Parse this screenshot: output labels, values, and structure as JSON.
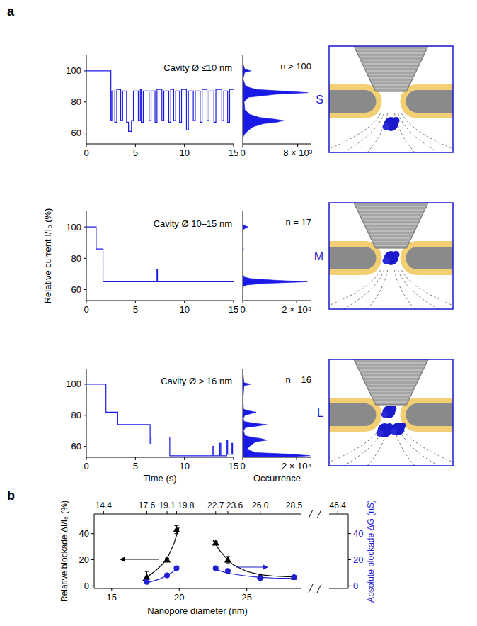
{
  "panel_labels": [
    "a",
    "b"
  ],
  "diagram": {
    "labels": [
      "S",
      "M",
      "L"
    ]
  },
  "chart_data": [
    {
      "type": "line",
      "line_style": "step",
      "annotation": "Cavity Ø ≤10 nm",
      "color": "#1a1ae6",
      "x": [
        0,
        2.5,
        2.6,
        2.9,
        3.1,
        3.5,
        3.7,
        4.1,
        4.3,
        4.6,
        4.8,
        5.3,
        5.5,
        5.6,
        5.8,
        6.4,
        6.6,
        7.0,
        7.2,
        7.7,
        7.9,
        8.4,
        8.6,
        8.9,
        9.1,
        9.5,
        9.7,
        10.2,
        10.4,
        10.9,
        11.1,
        11.6,
        11.8,
        12.3,
        12.5,
        13.0,
        13.2,
        13.8,
        14.0,
        14.4,
        14.6,
        15
      ],
      "values": [
        100,
        68,
        87,
        67,
        88,
        68,
        87,
        67,
        61,
        68,
        87,
        68,
        88,
        67,
        87,
        68,
        87,
        67,
        88,
        68,
        87,
        67,
        88,
        68,
        87,
        67,
        88,
        62,
        87,
        68,
        87,
        67,
        88,
        68,
        87,
        67,
        88,
        68,
        87,
        67,
        88,
        88
      ],
      "xlim": [
        0,
        15
      ],
      "xticks": [
        0,
        5,
        10,
        15
      ],
      "ylim": [
        53,
        110
      ],
      "yticks": [
        60,
        80,
        100
      ]
    },
    {
      "type": "line",
      "line_style": "step",
      "annotation": "Cavity Ø 10–15 nm",
      "color": "#1a1ae6",
      "ylabel": "Relative current I/I₀ (%)",
      "x": [
        0,
        1.0,
        1.7,
        7.15,
        7.25,
        15
      ],
      "values": [
        100,
        86,
        65,
        73,
        65,
        65
      ],
      "xlim": [
        0,
        15
      ],
      "xticks": [
        0,
        5,
        10,
        15
      ],
      "ylim": [
        53,
        110
      ],
      "yticks": [
        60,
        80,
        100
      ]
    },
    {
      "type": "line",
      "line_style": "step",
      "annotation": "Cavity Ø > 16 nm",
      "color": "#1a1ae6",
      "xlabel": "Time (s)",
      "x": [
        0,
        2.0,
        3.2,
        6.5,
        6.6,
        8.5,
        12.9,
        13.0,
        13.6,
        13.7,
        14.3,
        14.4,
        14.8,
        14.9,
        15
      ],
      "values": [
        100,
        82,
        74,
        62,
        66,
        54,
        60,
        54,
        62,
        54,
        64,
        55,
        62,
        55,
        55
      ],
      "xlim": [
        0,
        15
      ],
      "xticks": [
        0,
        5,
        10,
        15
      ],
      "ylim": [
        53,
        110
      ],
      "yticks": [
        60,
        80,
        100
      ]
    },
    {
      "type": "area",
      "orientation": "horizontal",
      "tick_labels": "x",
      "annotation": "n > 100",
      "color": "#1a1ae6",
      "x": [
        55,
        58,
        60,
        62,
        64,
        66,
        67,
        68,
        69,
        70,
        72,
        75,
        80,
        83,
        85,
        86,
        87,
        88,
        90,
        95,
        99,
        100,
        101,
        105
      ],
      "values": [
        0,
        100,
        400,
        900,
        1500,
        3000,
        5000,
        6000,
        4500,
        2500,
        1000,
        300,
        200,
        800,
        5000,
        9500,
        6000,
        2000,
        400,
        50,
        300,
        1200,
        300,
        0
      ],
      "xlim": [
        0,
        10000
      ],
      "xticks": [
        0,
        {
          "value": 8000,
          "label": "8 × 10³"
        }
      ],
      "ylim": [
        53,
        110
      ]
    },
    {
      "type": "area",
      "orientation": "horizontal",
      "tick_labels": "x",
      "annotation": "n = 17",
      "color": "#1a1ae6",
      "x": [
        58,
        62,
        63,
        64,
        65,
        66,
        67,
        68,
        70,
        80,
        85,
        86,
        87,
        90,
        98,
        99,
        100,
        101,
        102,
        108
      ],
      "values": [
        0,
        2000,
        15000,
        80000,
        240000,
        120000,
        30000,
        5000,
        500,
        100,
        1500,
        3000,
        500,
        0,
        500,
        8000,
        20000,
        5000,
        500,
        0
      ],
      "xlim": [
        0,
        255000
      ],
      "xticks": [
        0,
        {
          "value": 200000,
          "label": "2 × 10⁵"
        }
      ],
      "ylim": [
        53,
        110
      ]
    },
    {
      "type": "area",
      "orientation": "horizontal",
      "tick_labels": "x",
      "annotation": "n = 16",
      "color": "#1a1ae6",
      "xlabel": "Occurrence",
      "x": [
        50,
        52,
        53,
        54,
        55,
        56,
        58,
        60,
        62,
        63,
        64,
        65,
        66,
        67,
        70,
        72,
        73,
        74,
        75,
        76,
        78,
        80,
        81,
        82,
        83,
        84,
        90,
        99,
        100,
        101,
        108
      ],
      "values": [
        0,
        3000,
        15000,
        25000,
        18000,
        5000,
        1500,
        2500,
        4000,
        5000,
        9000,
        7000,
        3000,
        800,
        300,
        1000,
        5000,
        9000,
        4000,
        500,
        200,
        800,
        3000,
        5000,
        2000,
        300,
        50,
        500,
        3000,
        500,
        0
      ],
      "xlim": [
        0,
        25500
      ],
      "xticks": [
        0,
        {
          "value": 20000,
          "label": "2 × 10⁴"
        }
      ],
      "ylim": [
        53,
        110
      ]
    },
    {
      "type": "scatter",
      "xlabel": "Nanopore diameter (nm)",
      "ylabel": "Relative blockade ΔI/I₀ (%)",
      "y2label": "Absolute blockade ΔG (nS)",
      "x": [
        17.6,
        19.1,
        19.8,
        22.7,
        23.6,
        26.0,
        28.5
      ],
      "series": [
        {
          "type": "scatter",
          "marker": "triangle",
          "color": "#000000",
          "values": [
            7,
            20,
            43,
            33,
            20,
            7.5,
            7
          ],
          "errors": [
            4,
            1,
            3,
            1,
            2.5,
            1.5,
            1
          ]
        },
        {
          "type": "scatter",
          "marker": "circle",
          "color": "#1f1fd1",
          "axis": "y2",
          "values": [
            3,
            8,
            13.5,
            13.5,
            11.5,
            6,
            6.5
          ],
          "errors": [
            1.5,
            0.5,
            0.5,
            0.5,
            1.5,
            1,
            0.5
          ]
        },
        {
          "type": "line",
          "color": "#000000",
          "x": [
            17.3,
            17.8,
            18.3,
            18.8,
            19.2,
            19.6,
            20.0,
            21.2,
            22.5,
            23.0,
            23.5,
            24.0,
            25.0,
            26.0,
            27.0,
            28.0,
            28.7
          ],
          "values": [
            4,
            8,
            12,
            17,
            23,
            32,
            45,
            null,
            35,
            27,
            21,
            16,
            11,
            8.5,
            7.5,
            7,
            7
          ]
        },
        {
          "type": "line",
          "color": "#1f1fd1",
          "axis": "y2",
          "x": [
            17.5,
            18,
            18.5,
            19,
            19.5,
            20,
            21.2,
            22.5,
            23,
            23.5,
            24,
            25,
            26,
            27,
            28,
            28.7
          ],
          "values": [
            2,
            3.5,
            5,
            7.5,
            10.5,
            15,
            null,
            13.5,
            11.5,
            10,
            9,
            7.5,
            6.5,
            6,
            5.8,
            5.6
          ]
        }
      ],
      "xlim": [
        13.7,
        29
      ],
      "break_xlim": [
        45.9,
        47
      ],
      "xticks": [
        15,
        20,
        25
      ],
      "x2ticks": [
        14.4,
        17.6,
        19.1,
        19.8,
        22.7,
        23.6,
        {
          "value": 26,
          "label": "26.0"
        },
        28.5,
        46.4
      ],
      "ylim": [
        -2,
        55
      ],
      "yticks": [
        0,
        20,
        40
      ],
      "y2lim": [
        -2,
        55
      ],
      "y2ticks": [
        0,
        20,
        40
      ]
    }
  ]
}
